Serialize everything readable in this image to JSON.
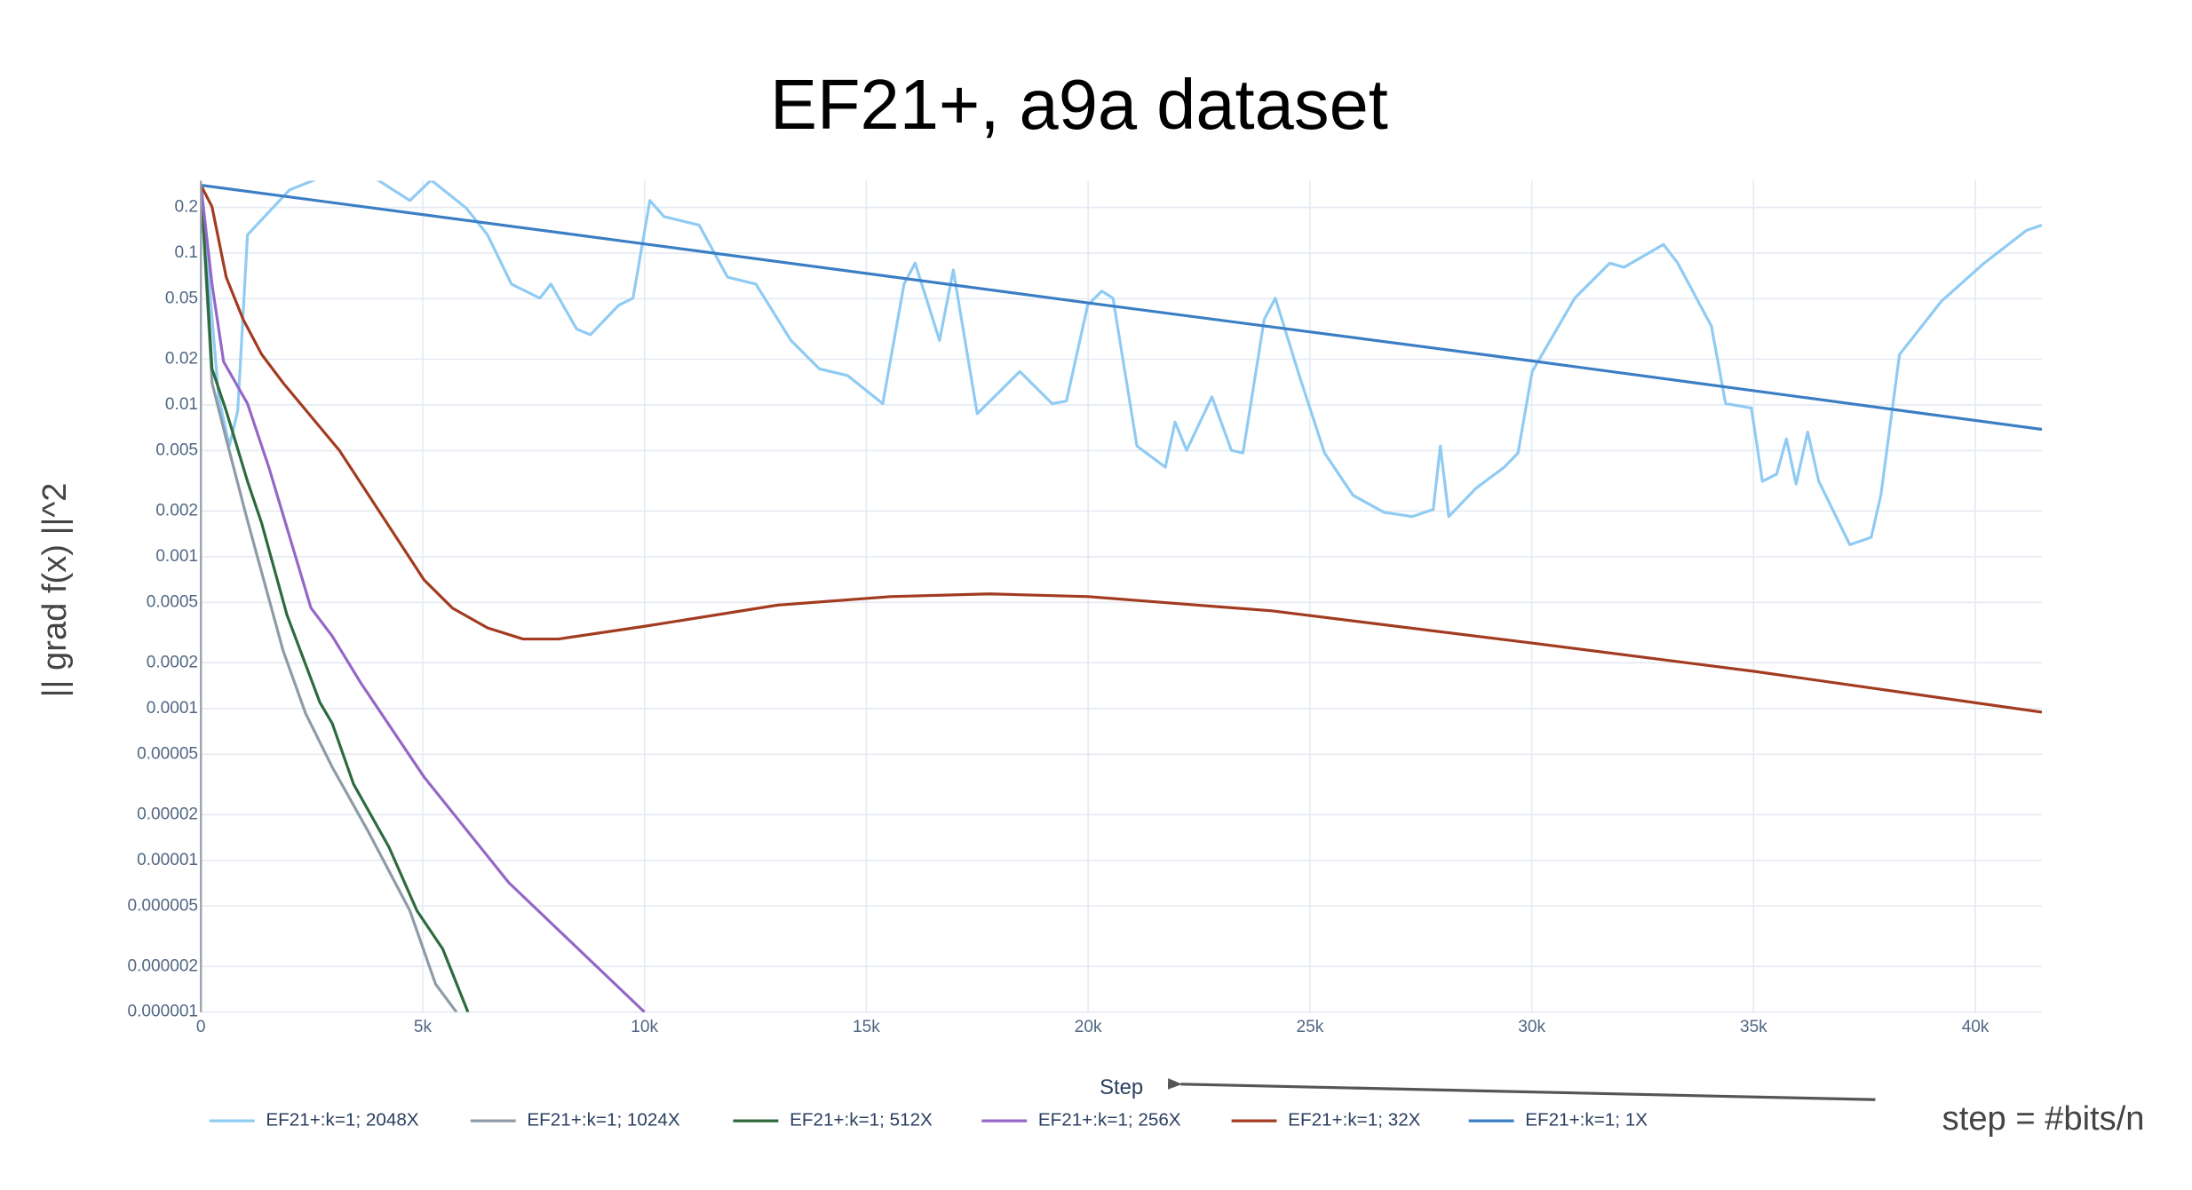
{
  "chart_data": {
    "type": "line",
    "title": "EF21+, a9a dataset",
    "xlabel": "Step",
    "ylabel": "|| grad f(x) ||^2",
    "annotation": "step = #bits/n",
    "log_y": true,
    "grid": true,
    "legend": "bottom",
    "xlim": [
      0,
      41500
    ],
    "ylim": [
      1e-06,
      0.3
    ],
    "xticks": [
      0,
      {
        "value": 5000,
        "label": "5k"
      },
      {
        "value": 10000,
        "label": "10k"
      },
      {
        "value": 15000,
        "label": "15k"
      },
      {
        "value": 20000,
        "label": "20k"
      },
      {
        "value": 25000,
        "label": "25k"
      },
      {
        "value": 30000,
        "label": "30k"
      },
      {
        "value": 35000,
        "label": "35k"
      },
      {
        "value": 40000,
        "label": "40k"
      }
    ],
    "yticks": [
      0.2,
      0.1,
      0.05,
      0.02,
      0.01,
      0.005,
      0.002,
      0.001,
      0.0005,
      0.0002,
      0.0001,
      5e-05,
      2e-05,
      1e-05,
      5e-06,
      2e-06,
      1e-06
    ],
    "series": [
      {
        "name": "EF21+:k=1; 2048X",
        "color": "#8fcbf3",
        "x": [
          0,
          400,
          640,
          830,
          1050,
          2000,
          3440,
          4710,
          5190,
          5980,
          6460,
          7000,
          7640,
          7890,
          8470,
          8780,
          9420,
          9740,
          10120,
          10440,
          11230,
          11870,
          12510,
          13300,
          13940,
          14580,
          15370,
          15850,
          16100,
          16650,
          16960,
          17500,
          18460,
          19190,
          19510,
          19990,
          20310,
          20560,
          21100,
          21740,
          21960,
          22220,
          22790,
          23230,
          23490,
          23970,
          24220,
          24760,
          25330,
          25970,
          26670,
          27310,
          27780,
          27940,
          28130,
          28740,
          29380,
          29690,
          30010,
          30970,
          31760,
          32080,
          32970,
          33290,
          34050,
          34370,
          34950,
          35200,
          35520,
          35740,
          35960,
          36220,
          36470,
          37170,
          37650,
          37870,
          38290,
          39240,
          40200,
          41150,
          41500
        ],
        "values": [
          0.28,
          0.0113,
          0.00536,
          0.00914,
          0.132,
          0.261,
          0.384,
          0.222,
          0.303,
          0.198,
          0.132,
          0.0625,
          0.0505,
          0.0625,
          0.0316,
          0.029,
          0.0454,
          0.0505,
          0.222,
          0.174,
          0.153,
          0.0695,
          0.0625,
          0.0266,
          0.0173,
          0.0156,
          0.0102,
          0.0625,
          0.086,
          0.0266,
          0.0774,
          0.00875,
          0.0166,
          0.0102,
          0.0106,
          0.0454,
          0.0562,
          0.0505,
          0.00536,
          0.00389,
          0.00771,
          0.00502,
          0.0113,
          0.00502,
          0.00482,
          0.0367,
          0.0505,
          0.0156,
          0.00482,
          0.00254,
          0.00196,
          0.00184,
          0.00205,
          0.00536,
          0.00184,
          0.00282,
          0.00389,
          0.00482,
          0.0166,
          0.0505,
          0.086,
          0.0807,
          0.114,
          0.086,
          0.033,
          0.0102,
          0.00955,
          0.00314,
          0.0035,
          0.00597,
          0.00301,
          0.00664,
          0.00314,
          0.0012,
          0.00134,
          0.00254,
          0.0215,
          0.0484,
          0.086,
          0.141,
          0.153
        ]
      },
      {
        "name": "EF21+:k=1; 1024X",
        "color": "#8e9ba7",
        "x": [
          0,
          250,
          570,
          1050,
          1850,
          2360,
          2960,
          3760,
          4710,
          5290,
          5760
        ],
        "values": [
          0.28,
          0.014,
          0.00597,
          0.00173,
          0.000242,
          9.27e-05,
          4.11e-05,
          1.57e-05,
          4.66e-06,
          1.53e-06,
          1e-06
        ]
      },
      {
        "name": "EF21+:k=1; 512X",
        "color": "#2d6a3c",
        "x": [
          0,
          250,
          570,
          1050,
          1370,
          1940,
          2680,
          2960,
          3440,
          4240,
          4870,
          5450,
          6020
        ],
        "values": [
          0.28,
          0.0173,
          0.00914,
          0.00314,
          0.00166,
          0.000413,
          0.00011,
          7.98e-05,
          3.18e-05,
          1.22e-05,
          4.66e-06,
          2.61e-06,
          1e-06
        ]
      },
      {
        "name": "EF21+:k=1; 256X",
        "color": "#9467c6",
        "x": [
          0,
          250,
          510,
          1050,
          1530,
          2480,
          2960,
          3600,
          5030,
          6940,
          10000
        ],
        "values": [
          0.28,
          0.0625,
          0.0193,
          0.0102,
          0.00389,
          0.00046,
          0.0003,
          0.000148,
          3.54e-05,
          7.13e-06,
          1e-06
        ]
      },
      {
        "name": "EF21+:k=1; 32X",
        "color": "#a23b20",
        "x": [
          0,
          250,
          570,
          950,
          1370,
          1850,
          3120,
          5030,
          5670,
          6460,
          7260,
          8060,
          10000,
          13000,
          15540,
          17770,
          20000,
          24140,
          30000,
          35000,
          41500
        ],
        "values": [
          0.28,
          0.202,
          0.0695,
          0.0367,
          0.0215,
          0.014,
          0.00502,
          0.000704,
          0.000459,
          0.00034,
          0.000287,
          0.000287,
          0.000348,
          0.00048,
          0.000546,
          0.000569,
          0.000546,
          0.00044,
          0.00027,
          0.000176,
          9.46e-05
        ]
      },
      {
        "name": "EF21+:k=1; 1X",
        "color": "#3b7ec4",
        "x": [
          0,
          10000,
          20000,
          30000,
          41500
        ],
        "values": [
          0.28,
          0.115,
          0.047,
          0.0195,
          0.0069
        ]
      }
    ]
  }
}
